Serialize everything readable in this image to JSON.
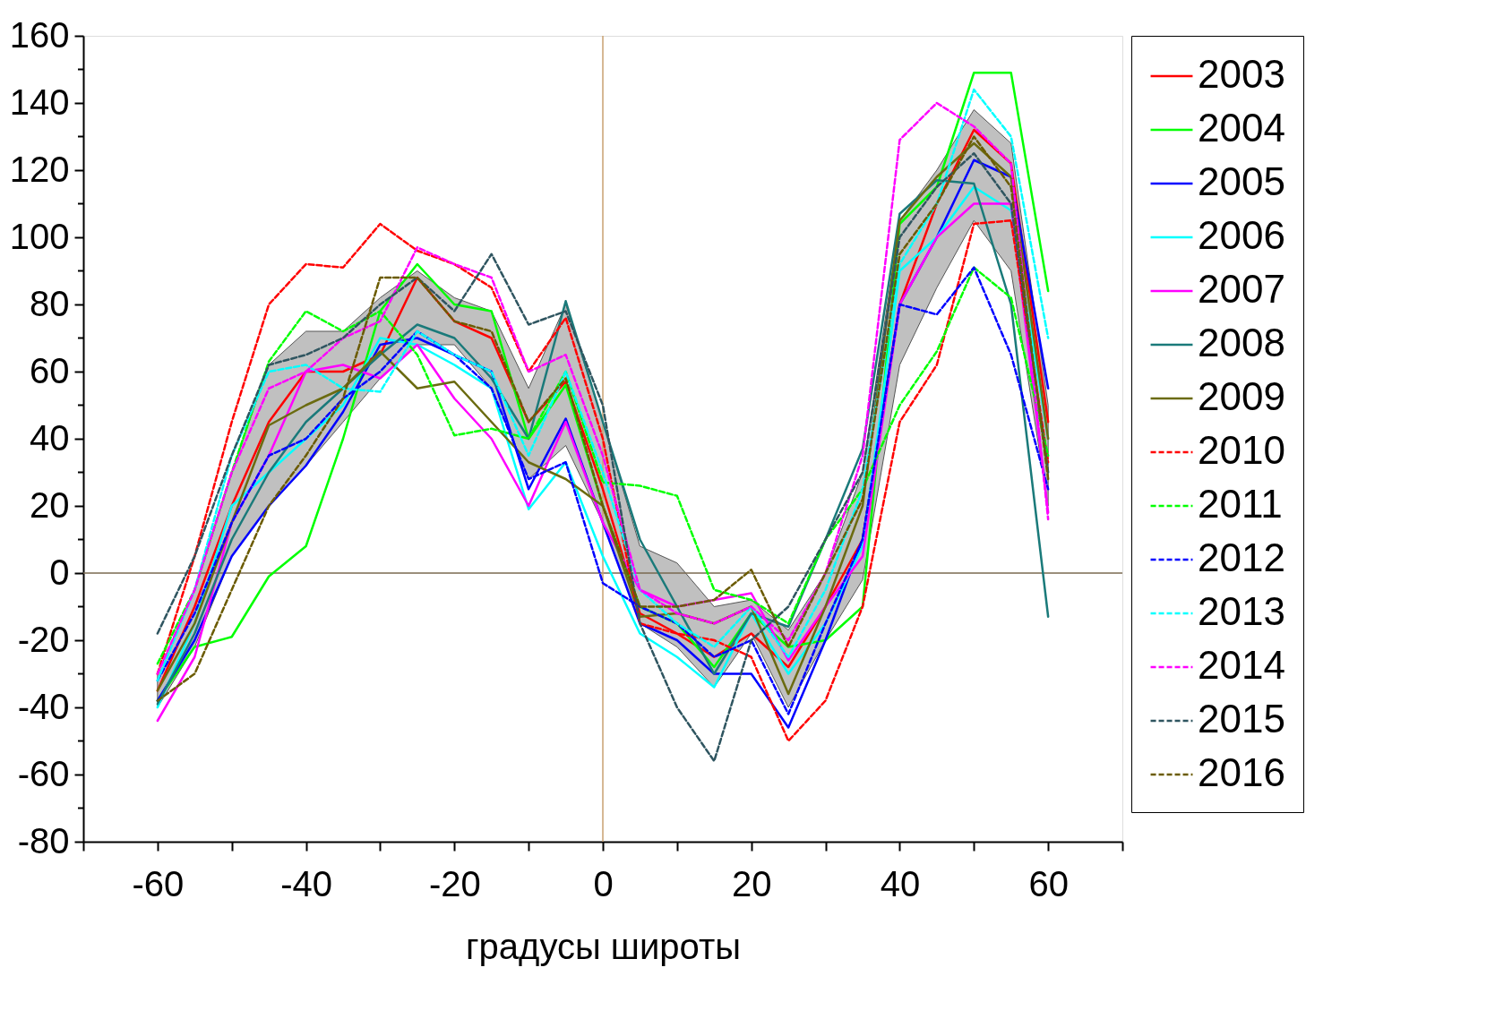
{
  "chart_data": {
    "type": "line",
    "xlabel": "градусы широты",
    "legend": "right",
    "x": [
      -60,
      -55,
      -50,
      -45,
      -40,
      -35,
      -30,
      -25,
      -20,
      -15,
      -10,
      -5,
      0,
      5,
      10,
      15,
      20,
      25,
      30,
      35,
      40,
      45,
      50,
      55,
      60
    ],
    "xlim": [
      -70,
      70
    ],
    "xticks": [
      {
        "value": -70,
        "label": null
      },
      -60,
      {
        "value": -50,
        "label": null
      },
      -40,
      {
        "value": -30,
        "label": null
      },
      -20,
      {
        "value": -10,
        "label": null
      },
      0,
      {
        "value": 10,
        "label": null
      },
      20,
      {
        "value": 30,
        "label": null
      },
      40,
      {
        "value": 50,
        "label": null
      },
      60,
      {
        "value": 70,
        "label": null
      }
    ],
    "ylim": [
      -80,
      160
    ],
    "yticks": [
      -80,
      {
        "value": -70,
        "label": null
      },
      -60,
      {
        "value": -50,
        "label": null
      },
      -40,
      {
        "value": -30,
        "label": null
      },
      -20,
      {
        "value": -10,
        "label": null
      },
      0,
      {
        "value": 10,
        "label": null
      },
      20,
      {
        "value": 30,
        "label": null
      },
      40,
      {
        "value": 50,
        "label": null
      },
      60,
      {
        "value": 70,
        "label": null
      },
      80,
      {
        "value": 90,
        "label": null
      },
      100,
      {
        "value": 110,
        "label": null
      },
      120,
      {
        "value": 130,
        "label": null
      },
      140,
      {
        "value": 150,
        "label": null
      },
      160
    ],
    "ref_lines": [
      {
        "axis": "y",
        "value": 0,
        "color": "#7a6a50"
      },
      {
        "axis": "x",
        "value": 0,
        "color": "#c8a070"
      }
    ],
    "series": [
      {
        "color": "#c0c0c0",
        "values": [
          null,
          null,
          null,
          null,
          null,
          null,
          null,
          null,
          null,
          null,
          null,
          null,
          null,
          null,
          null,
          null,
          null,
          null,
          null,
          null,
          null,
          null,
          null,
          null,
          null
        ],
        "lower": [
          -40,
          -22,
          5,
          20,
          32,
          45,
          58,
          68,
          68,
          55,
          28,
          38,
          15,
          -15,
          -22,
          -34,
          -18,
          -40,
          -20,
          -2,
          62,
          85,
          105,
          90,
          20
        ],
        "upper": [
          -30,
          -5,
          30,
          62,
          72,
          72,
          82,
          90,
          82,
          78,
          55,
          80,
          45,
          8,
          3,
          -10,
          -8,
          -17,
          0,
          30,
          105,
          120,
          138,
          128,
          50
        ]
      },
      {
        "name": "2003",
        "color": "#ff0000",
        "line_style": "solid",
        "values": [
          -35,
          -10,
          20,
          45,
          60,
          60,
          65,
          88,
          75,
          70,
          45,
          57,
          25,
          -12,
          -18,
          -25,
          -18,
          -28,
          -10,
          10,
          80,
          110,
          132,
          122,
          45
        ]
      },
      {
        "name": "2004",
        "color": "#00ff00",
        "line_style": "solid",
        "values": [
          -38,
          -22,
          -19,
          -1,
          8,
          40,
          78,
          92,
          80,
          78,
          40,
          56,
          20,
          -10,
          -15,
          -28,
          -12,
          -22,
          -20,
          -10,
          104,
          115,
          149,
          149,
          84
        ]
      },
      {
        "name": "2005",
        "color": "#0000ff",
        "line_style": "solid",
        "values": [
          -38,
          -20,
          5,
          20,
          32,
          48,
          68,
          70,
          65,
          60,
          25,
          46,
          15,
          -15,
          -20,
          -30,
          -30,
          -46,
          -20,
          10,
          80,
          100,
          123,
          118,
          55
        ]
      },
      {
        "name": "2006",
        "color": "#00ffff",
        "line_style": "solid",
        "values": [
          -40,
          -15,
          20,
          30,
          40,
          50,
          70,
          68,
          62,
          55,
          19,
          33,
          5,
          -18,
          -25,
          -34,
          -12,
          -30,
          -15,
          8,
          90,
          100,
          115,
          108,
          40
        ]
      },
      {
        "name": "2007",
        "color": "#ff00ff",
        "line_style": "solid",
        "values": [
          -44,
          -25,
          15,
          35,
          60,
          62,
          58,
          68,
          52,
          40,
          20,
          45,
          15,
          -5,
          -10,
          -8,
          -6,
          -26,
          -10,
          5,
          80,
          100,
          110,
          110,
          18
        ]
      },
      {
        "name": "2008",
        "color": "#1a7a7a",
        "line_style": "solid",
        "values": [
          -39,
          -18,
          10,
          30,
          45,
          55,
          65,
          74,
          70,
          58,
          40,
          81,
          45,
          10,
          -10,
          -30,
          -12,
          -16,
          10,
          37,
          107,
          117,
          116,
          80,
          -13
        ]
      },
      {
        "name": "2009",
        "color": "#6b6b10",
        "line_style": "solid",
        "values": [
          -35,
          -15,
          15,
          44,
          50,
          55,
          66,
          55,
          57,
          45,
          33,
          28,
          20,
          -13,
          -12,
          -15,
          -10,
          -36,
          -10,
          20,
          105,
          118,
          128,
          118,
          40
        ]
      },
      {
        "name": "2010",
        "color": "#ff0000",
        "line_style": "dashed",
        "values": [
          -30,
          5,
          45,
          80,
          92,
          91,
          104,
          96,
          92,
          85,
          60,
          76,
          40,
          -15,
          -18,
          -20,
          -25,
          -50,
          -38,
          -10,
          45,
          62,
          104,
          105,
          33
        ]
      },
      {
        "name": "2011",
        "color": "#00ff00",
        "line_style": "dashed",
        "values": [
          -27,
          -5,
          30,
          63,
          78,
          72,
          78,
          65,
          41,
          43,
          40,
          60,
          27,
          26,
          23,
          -5,
          -8,
          -15,
          10,
          25,
          50,
          66,
          91,
          82,
          35
        ]
      },
      {
        "name": "2012",
        "color": "#0000ff",
        "line_style": "dashed",
        "values": [
          -32,
          -12,
          15,
          35,
          40,
          52,
          60,
          72,
          65,
          55,
          28,
          33,
          -3,
          -10,
          -15,
          -25,
          -20,
          -42,
          -15,
          10,
          80,
          77,
          91,
          65,
          25
        ]
      },
      {
        "name": "2013",
        "color": "#00ffff",
        "line_style": "dashed",
        "values": [
          -32,
          -5,
          35,
          60,
          62,
          55,
          54,
          72,
          65,
          60,
          35,
          60,
          30,
          -5,
          -15,
          -22,
          -10,
          -25,
          -5,
          25,
          92,
          110,
          144,
          130,
          70
        ]
      },
      {
        "name": "2014",
        "color": "#ff00ff",
        "line_style": "dashed",
        "values": [
          -30,
          -5,
          30,
          55,
          60,
          70,
          75,
          97,
          92,
          88,
          60,
          65,
          35,
          -5,
          -12,
          -15,
          -10,
          -20,
          0,
          35,
          129,
          140,
          133,
          122,
          16
        ]
      },
      {
        "name": "2015",
        "color": "#2f5560",
        "line_style": "dashed",
        "values": [
          -18,
          5,
          35,
          62,
          65,
          70,
          80,
          88,
          78,
          95,
          74,
          78,
          50,
          -15,
          -40,
          -56,
          -20,
          -10,
          10,
          30,
          100,
          115,
          125,
          110,
          30
        ]
      },
      {
        "name": "2016",
        "color": "#6b5b00",
        "line_style": "dashed",
        "values": [
          -38,
          -30,
          -5,
          20,
          35,
          52,
          88,
          88,
          75,
          72,
          45,
          58,
          20,
          -10,
          -10,
          -8,
          1,
          -22,
          0,
          22,
          95,
          110,
          130,
          115,
          28
        ]
      }
    ]
  }
}
